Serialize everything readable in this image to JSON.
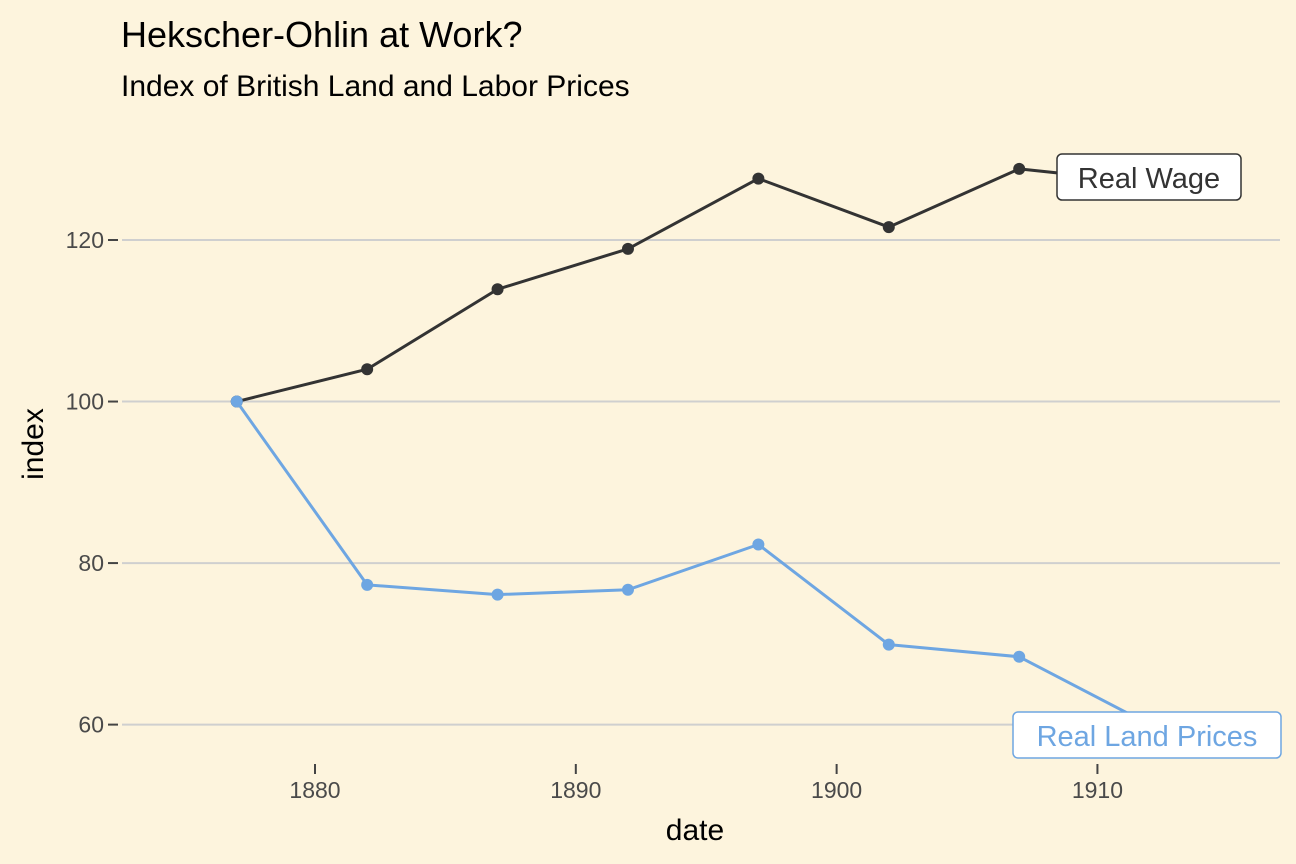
{
  "chart_data": {
    "type": "line",
    "title": "Hekscher-Ohlin at Work?",
    "subtitle": "Index of British Land and Labor Prices",
    "xlabel": "date",
    "ylabel": "index",
    "xlim": [
      1872.6,
      1917
    ],
    "ylim": [
      55,
      133
    ],
    "x_ticks": [
      1880,
      1890,
      1900,
      1910
    ],
    "y_ticks": [
      60,
      80,
      100,
      120
    ],
    "grid": "horizontal major",
    "x": [
      1877,
      1882,
      1887,
      1892,
      1897,
      1902,
      1907,
      1912
    ],
    "series": [
      {
        "name": "Real Wage",
        "color": "#333333",
        "values": [
          100,
          104,
          113.9,
          118.9,
          127.6,
          121.6,
          128.8,
          127.1
        ]
      },
      {
        "name": "Real Land Prices",
        "color": "#6ea6e2",
        "values": [
          100,
          77.3,
          76.1,
          76.7,
          82.3,
          69.9,
          68.4,
          60.0
        ]
      }
    ]
  }
}
